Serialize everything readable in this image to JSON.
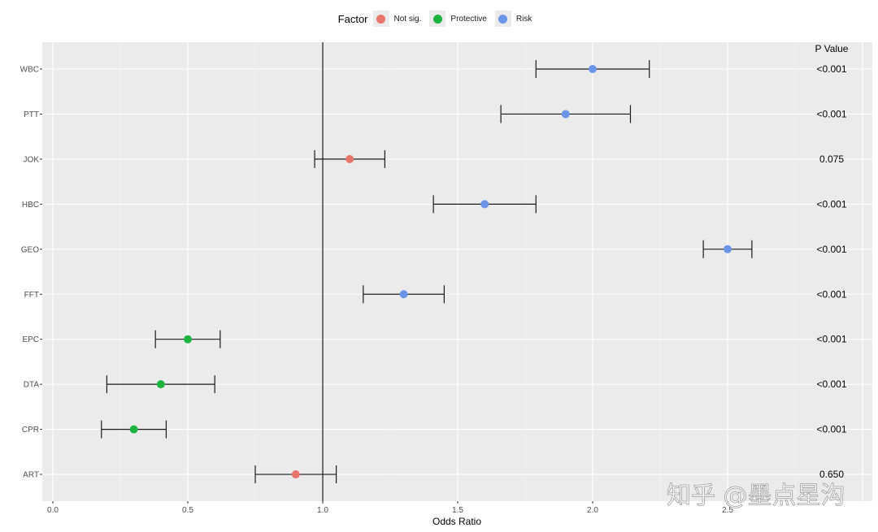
{
  "legend": {
    "title": "Factor",
    "items": [
      {
        "label": "Not sig.",
        "color": "#e8756b"
      },
      {
        "label": "Protective",
        "color": "#1db341"
      },
      {
        "label": "Risk",
        "color": "#6a95e8"
      }
    ]
  },
  "axis": {
    "x_title": "Odds Ratio",
    "x_ticks": [
      "0.0",
      "0.5",
      "1.0",
      "1.5",
      "2.0",
      "2.5"
    ],
    "p_header": "P Value"
  },
  "watermark": "知乎 @墨点星沟",
  "chart_data": {
    "type": "scatter",
    "subtype": "forest_plot",
    "title": "",
    "xlabel": "Odds Ratio",
    "ylabel": "",
    "xlim": [
      -0.04,
      3.04
    ],
    "x_ticks": [
      0.0,
      0.5,
      1.0,
      1.5,
      2.0,
      2.5
    ],
    "reference_line": 1.0,
    "grid": true,
    "legend_position": "top",
    "legend_title": "Factor",
    "categories": [
      "WBC",
      "PTT",
      "JOK",
      "HBC",
      "GEO",
      "FFT",
      "EPC",
      "DTA",
      "CPR",
      "ART"
    ],
    "series": [
      {
        "name": "odds_ratio",
        "values": [
          2.0,
          1.9,
          1.1,
          1.6,
          2.5,
          1.3,
          0.5,
          0.4,
          0.3,
          0.9
        ]
      },
      {
        "name": "ci_lower",
        "values": [
          1.79,
          1.66,
          0.97,
          1.41,
          2.41,
          1.15,
          0.38,
          0.2,
          0.18,
          0.75
        ]
      },
      {
        "name": "ci_upper",
        "values": [
          2.21,
          2.14,
          1.23,
          1.79,
          2.59,
          1.45,
          0.62,
          0.6,
          0.42,
          1.05
        ]
      }
    ],
    "factor": [
      "Risk",
      "Risk",
      "Not sig.",
      "Risk",
      "Risk",
      "Risk",
      "Protective",
      "Protective",
      "Protective",
      "Not sig."
    ],
    "p_value_header": "P Value",
    "p_values": [
      "<0.001",
      "<0.001",
      "0.075",
      "<0.001",
      "<0.001",
      "<0.001",
      "<0.001",
      "<0.001",
      "<0.001",
      "0.650"
    ]
  }
}
